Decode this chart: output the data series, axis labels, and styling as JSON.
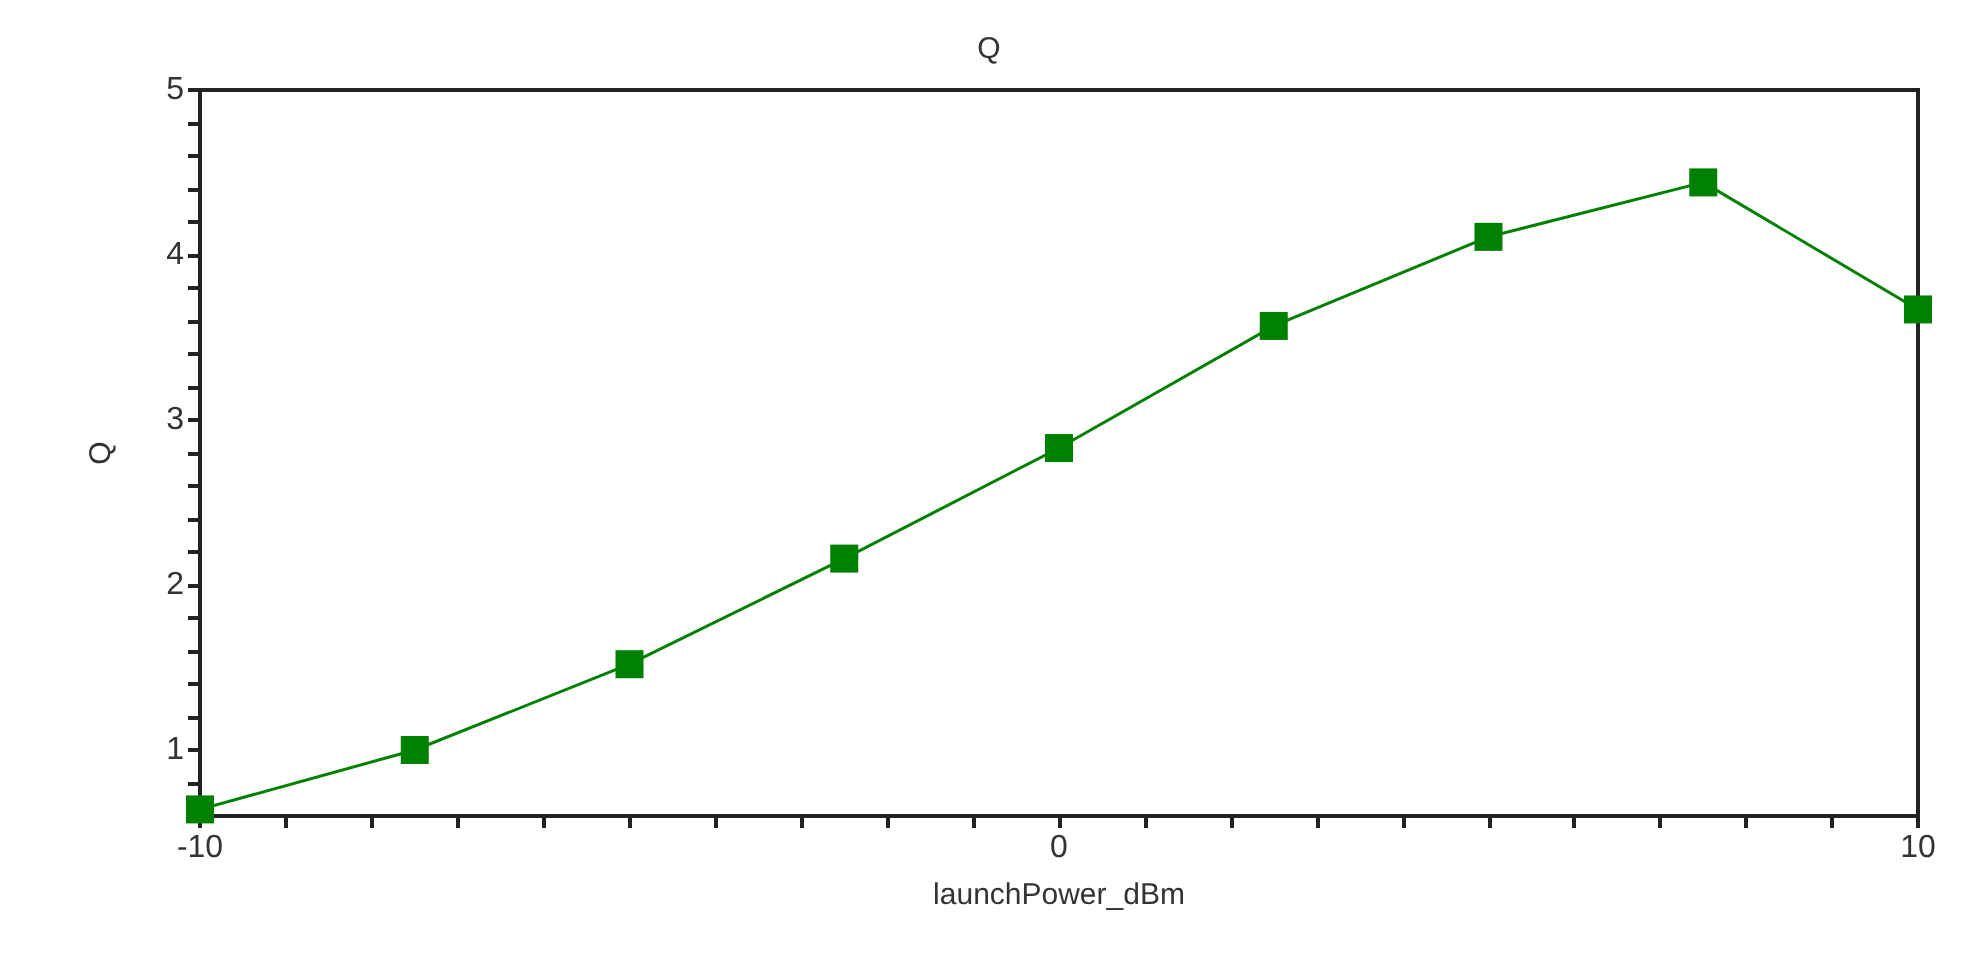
{
  "chart_data": {
    "type": "line",
    "title": "Q",
    "xlabel": "launchPower_dBm",
    "ylabel": "Q",
    "x": [
      -10,
      -7.5,
      -5,
      -2.5,
      0,
      2.5,
      5,
      7.5,
      10
    ],
    "series": [
      {
        "color": "#008000",
        "values": [
          0.64,
          1.0,
          1.52,
          2.16,
          2.83,
          3.57,
          4.11,
          4.44,
          3.67
        ]
      }
    ],
    "xlim": [
      -10,
      10
    ],
    "xticks": [
      -10,
      {
        "value": -9,
        "label": null
      },
      {
        "value": -8,
        "label": null
      },
      {
        "value": -7,
        "label": null
      },
      {
        "value": -6,
        "label": null
      },
      {
        "value": -5,
        "label": null
      },
      {
        "value": -4,
        "label": null
      },
      {
        "value": -3,
        "label": null
      },
      {
        "value": -2,
        "label": null
      },
      {
        "value": -1,
        "label": null
      },
      0,
      {
        "value": 1,
        "label": null
      },
      {
        "value": 2,
        "label": null
      },
      {
        "value": 3,
        "label": null
      },
      {
        "value": 4,
        "label": null
      },
      {
        "value": 5,
        "label": null
      },
      {
        "value": 6,
        "label": null
      },
      {
        "value": 7,
        "label": null
      },
      {
        "value": 8,
        "label": null
      },
      {
        "value": 9,
        "label": null
      },
      10
    ],
    "ylim": [
      0.6,
      5
    ],
    "yticks": [
      {
        "value": 0.8,
        "label": null
      },
      1,
      {
        "value": 1.2,
        "label": null
      },
      {
        "value": 1.4,
        "label": null
      },
      {
        "value": 1.6,
        "label": null
      },
      {
        "value": 1.8,
        "label": null
      },
      2,
      {
        "value": 2.2,
        "label": null
      },
      {
        "value": 2.4,
        "label": null
      },
      {
        "value": 2.6,
        "label": null
      },
      {
        "value": 2.8,
        "label": null
      },
      3,
      {
        "value": 3.2,
        "label": null
      },
      {
        "value": 3.4,
        "label": null
      },
      {
        "value": 3.6,
        "label": null
      },
      {
        "value": 3.8,
        "label": null
      },
      4,
      {
        "value": 4.2,
        "label": null
      },
      {
        "value": 4.4,
        "label": null
      },
      {
        "value": 4.6,
        "label": null
      },
      {
        "value": 4.8,
        "label": null
      },
      5
    ],
    "marker": "square",
    "grid": false
  }
}
